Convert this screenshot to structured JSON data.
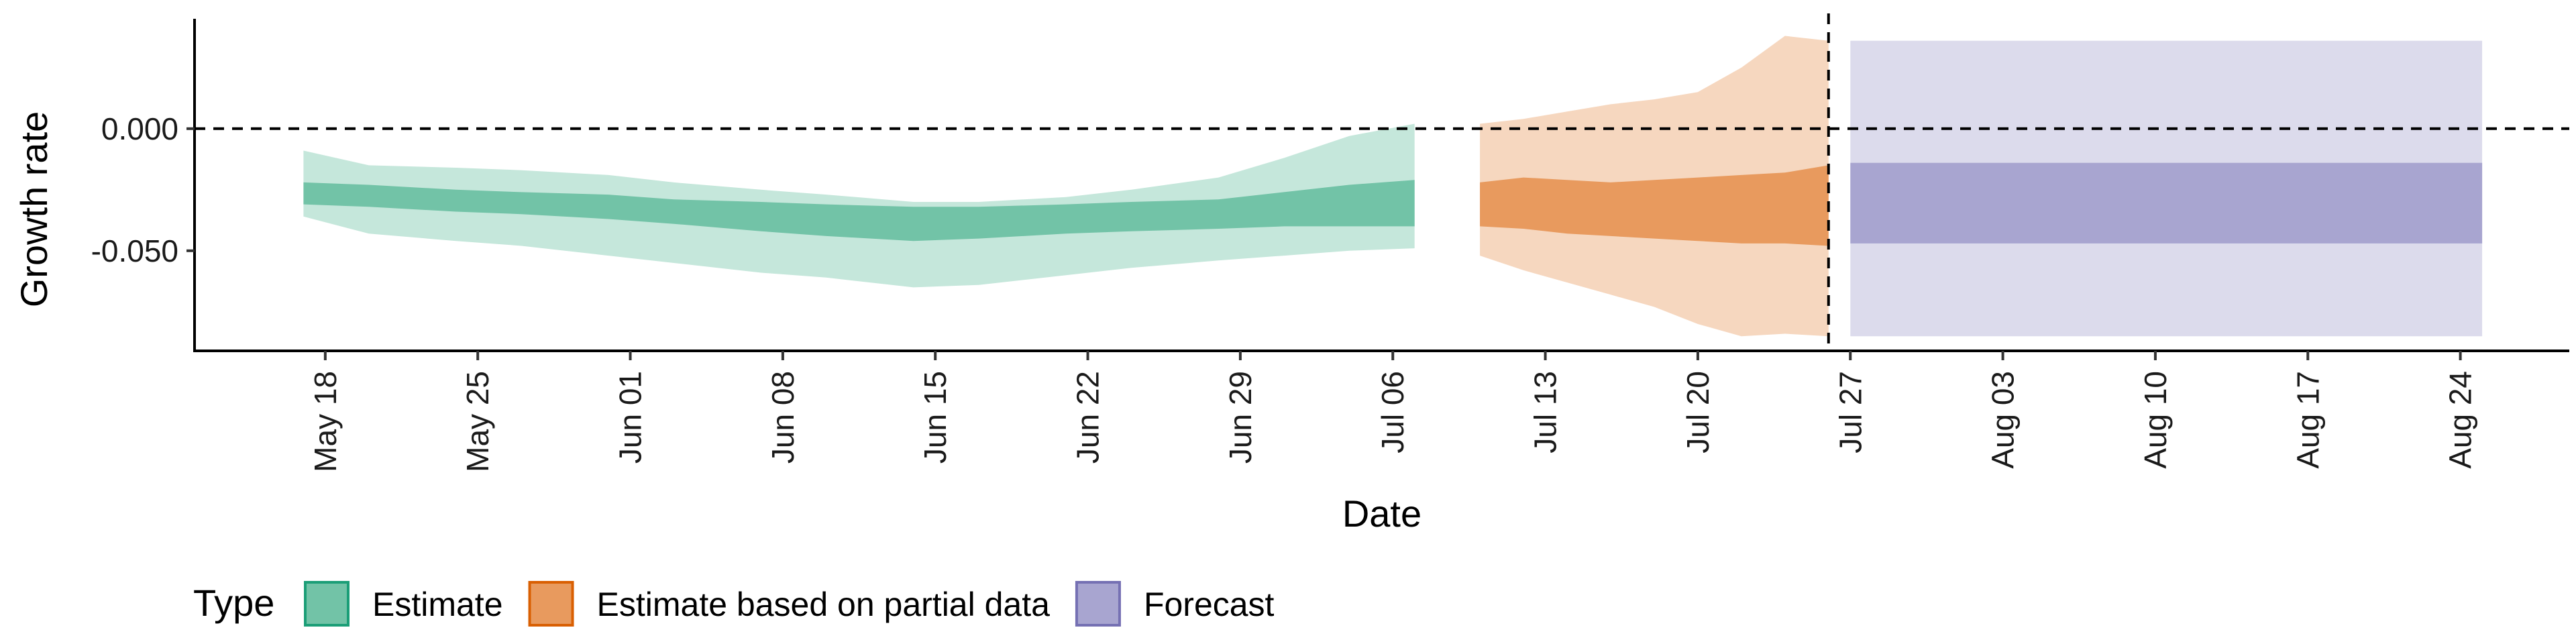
{
  "chart_data": {
    "type": "area",
    "title": "",
    "xlabel": "Date",
    "ylabel": "Growth rate",
    "x_type": "date",
    "xlim": [
      "2020-05-12",
      "2020-08-29"
    ],
    "ylim": [
      -0.091,
      0.045
    ],
    "y_ticks": [
      0.0,
      -0.05
    ],
    "y_tick_labels": [
      "0.000",
      "-0.050"
    ],
    "x_ticks": [
      "2020-05-18",
      "2020-05-25",
      "2020-06-01",
      "2020-06-08",
      "2020-06-15",
      "2020-06-22",
      "2020-06-29",
      "2020-07-06",
      "2020-07-13",
      "2020-07-20",
      "2020-07-27",
      "2020-08-03",
      "2020-08-10",
      "2020-08-17",
      "2020-08-24"
    ],
    "x_tick_labels": [
      "May 18",
      "May 25",
      "Jun 01",
      "Jun 08",
      "Jun 15",
      "Jun 22",
      "Jun 29",
      "Jul 06",
      "Jul 13",
      "Jul 20",
      "Jul 27",
      "Aug 03",
      "Aug 10",
      "Aug 17",
      "Aug 24"
    ],
    "reference_lines": {
      "horizontal_y": 0.0,
      "vertical_date": "2020-07-26",
      "style": "dashed"
    },
    "grid": false,
    "legend": {
      "title": "Type",
      "position": "bottom-left",
      "entries": [
        "Estimate",
        "Estimate based on partial data",
        "Forecast"
      ]
    },
    "colors": {
      "Estimate": {
        "outer": "#c5e7db",
        "inner": "#72c3a7",
        "border": "#1b9e77"
      },
      "Estimate based on partial data": {
        "outer": "#f6d7bf",
        "inner": "#e89a5e",
        "border": "#d95f02"
      },
      "Forecast": {
        "outer": "#dcdbec",
        "inner": "#a8a5d0",
        "border": "#7570b3"
      }
    },
    "series": [
      {
        "name": "Estimate",
        "dates": [
          "2020-05-17",
          "2020-05-20",
          "2020-05-24",
          "2020-05-27",
          "2020-05-31",
          "2020-06-03",
          "2020-06-07",
          "2020-06-10",
          "2020-06-14",
          "2020-06-17",
          "2020-06-21",
          "2020-06-24",
          "2020-06-28",
          "2020-07-01",
          "2020-07-04",
          "2020-07-07"
        ],
        "upper_outer": [
          -0.009,
          -0.015,
          -0.016,
          -0.017,
          -0.019,
          -0.022,
          -0.025,
          -0.027,
          -0.03,
          -0.03,
          -0.028,
          -0.025,
          -0.02,
          -0.012,
          -0.003,
          0.002
        ],
        "upper_inner": [
          -0.022,
          -0.023,
          -0.025,
          -0.026,
          -0.027,
          -0.029,
          -0.03,
          -0.031,
          -0.032,
          -0.032,
          -0.031,
          -0.03,
          -0.029,
          -0.026,
          -0.023,
          -0.021
        ],
        "lower_inner": [
          -0.031,
          -0.032,
          -0.034,
          -0.035,
          -0.037,
          -0.039,
          -0.042,
          -0.044,
          -0.046,
          -0.045,
          -0.043,
          -0.042,
          -0.041,
          -0.04,
          -0.04,
          -0.04
        ],
        "lower_outer": [
          -0.036,
          -0.043,
          -0.046,
          -0.048,
          -0.052,
          -0.055,
          -0.059,
          -0.061,
          -0.065,
          -0.064,
          -0.06,
          -0.057,
          -0.054,
          -0.052,
          -0.05,
          -0.049
        ]
      },
      {
        "name": "Estimate based on partial data",
        "dates": [
          "2020-07-10",
          "2020-07-12",
          "2020-07-14",
          "2020-07-16",
          "2020-07-18",
          "2020-07-20",
          "2020-07-22",
          "2020-07-24",
          "2020-07-26"
        ],
        "upper_outer": [
          0.002,
          0.004,
          0.007,
          0.01,
          0.012,
          0.015,
          0.025,
          0.038,
          0.036
        ],
        "upper_inner": [
          -0.022,
          -0.02,
          -0.021,
          -0.022,
          -0.021,
          -0.02,
          -0.019,
          -0.018,
          -0.015
        ],
        "lower_inner": [
          -0.04,
          -0.041,
          -0.043,
          -0.044,
          -0.045,
          -0.046,
          -0.047,
          -0.047,
          -0.048
        ],
        "lower_outer": [
          -0.052,
          -0.058,
          -0.063,
          -0.068,
          -0.073,
          -0.08,
          -0.085,
          -0.084,
          -0.085
        ]
      },
      {
        "name": "Forecast",
        "dates": [
          "2020-07-27",
          "2020-08-25"
        ],
        "upper_outer": [
          0.036,
          0.036
        ],
        "upper_inner": [
          -0.014,
          -0.014
        ],
        "lower_inner": [
          -0.047,
          -0.047
        ],
        "lower_outer": [
          -0.085,
          -0.085
        ]
      }
    ]
  }
}
